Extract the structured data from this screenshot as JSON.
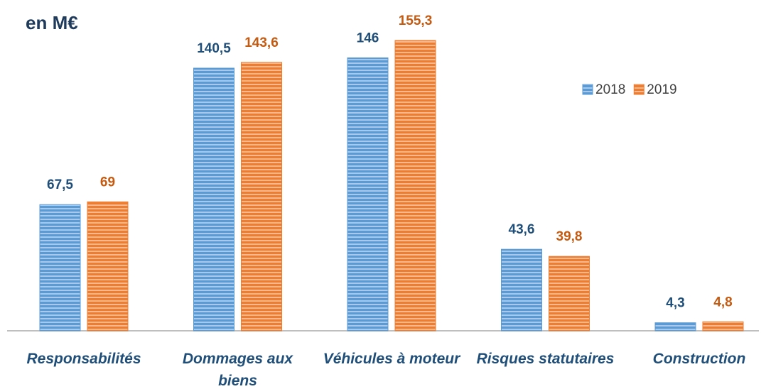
{
  "chart_data": {
    "type": "bar",
    "title": "en M€",
    "categories": [
      "Responsabilités",
      "Dommages aux biens",
      "Véhicules à moteur",
      "Risques statutaires",
      "Construction"
    ],
    "series": [
      {
        "name": "2018",
        "color": "#5b9bd5",
        "values": [
          67.5,
          140.5,
          146,
          43.6,
          4.3
        ],
        "value_labels": [
          "67,5",
          "140,5",
          "146",
          "43,6",
          "4,3"
        ]
      },
      {
        "name": "2019",
        "color": "#ed7d31",
        "values": [
          69,
          143.6,
          155.3,
          39.8,
          4.8
        ],
        "value_labels": [
          "69",
          "143,6",
          "155,3",
          "39,8",
          "4,8"
        ]
      }
    ],
    "legend": "top-right"
  }
}
